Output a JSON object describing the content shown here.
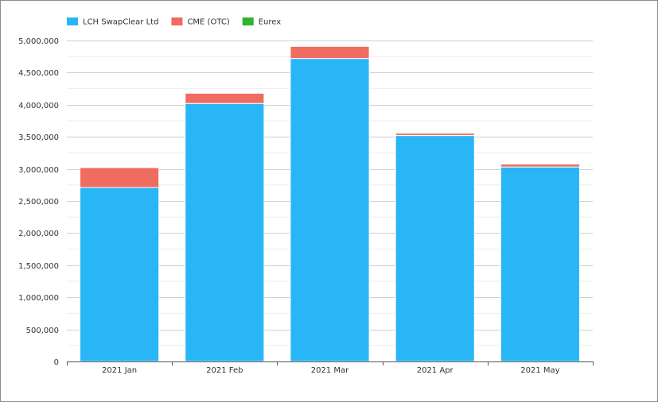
{
  "chart_data": {
    "type": "bar",
    "stacked": true,
    "title": "",
    "xlabel": "",
    "ylabel": "",
    "categories": [
      "2021 Jan",
      "2021 Feb",
      "2021 Mar",
      "2021 Apr",
      "2021 May"
    ],
    "series": [
      {
        "name": "LCH SwapClear Ltd",
        "color": "#29b6f6",
        "values": [
          2710000,
          4020000,
          4720000,
          3520000,
          3030000
        ]
      },
      {
        "name": "CME (OTC)",
        "color": "#ef6c5e",
        "values": [
          310000,
          160000,
          190000,
          35000,
          45000
        ]
      },
      {
        "name": "Eurex",
        "color": "#2db52d",
        "values": [
          5000,
          5000,
          10000,
          15000,
          10000
        ]
      }
    ],
    "ylim": [
      0,
      5000000
    ],
    "yticks": [
      0,
      500000,
      1000000,
      1500000,
      2000000,
      2500000,
      3000000,
      3500000,
      4000000,
      4500000,
      5000000
    ],
    "ytick_labels": [
      "0",
      "500,000",
      "1,000,000",
      "1,500,000",
      "2,000,000",
      "2,500,000",
      "3,000,000",
      "3,500,000",
      "4,000,000",
      "4,500,000",
      "5,000,000"
    ],
    "grid": true,
    "legend_position": "top-left"
  }
}
